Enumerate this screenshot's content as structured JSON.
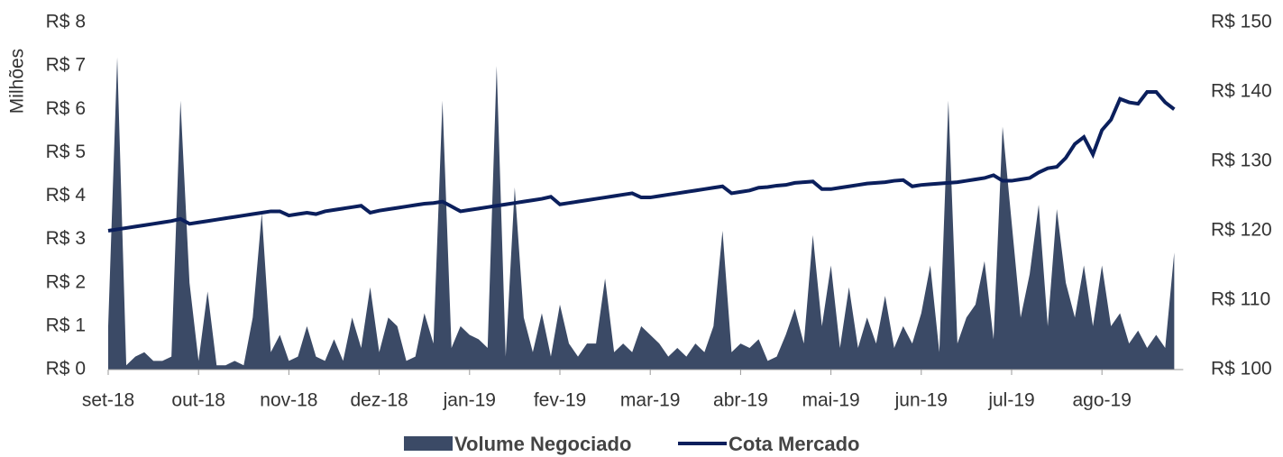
{
  "chart_data": {
    "type": "area",
    "y_label": "Milhões",
    "categories": [
      "set-18",
      null,
      null,
      null,
      null,
      null,
      null,
      null,
      null,
      null,
      "out-18",
      null,
      null,
      null,
      null,
      null,
      null,
      null,
      null,
      null,
      "nov-18",
      null,
      null,
      null,
      null,
      null,
      null,
      null,
      null,
      null,
      "dez-18",
      null,
      null,
      null,
      null,
      null,
      null,
      null,
      null,
      null,
      "jan-19",
      null,
      null,
      null,
      null,
      null,
      null,
      null,
      null,
      null,
      "fev-19",
      null,
      null,
      null,
      null,
      null,
      null,
      null,
      null,
      null,
      "mar-19",
      null,
      null,
      null,
      null,
      null,
      null,
      null,
      null,
      null,
      "abr-19",
      null,
      null,
      null,
      null,
      null,
      null,
      null,
      null,
      null,
      "mai-19",
      null,
      null,
      null,
      null,
      null,
      null,
      null,
      null,
      null,
      "jun-19",
      null,
      null,
      null,
      null,
      null,
      null,
      null,
      null,
      null,
      "jul-19",
      null,
      null,
      null,
      null,
      null,
      null,
      null,
      null,
      null,
      "ago-19",
      null,
      null,
      null,
      null,
      null,
      null,
      null,
      null
    ],
    "series": [
      {
        "name": "Volume Negociado",
        "type": "area",
        "color": "#3b4a66",
        "values": [
          1.0,
          7.2,
          0.1,
          0.3,
          0.4,
          0.2,
          0.2,
          0.3,
          6.2,
          2.0,
          0.2,
          1.8,
          0.1,
          0.1,
          0.2,
          0.1,
          1.2,
          3.6,
          0.4,
          0.8,
          0.2,
          0.3,
          1.0,
          0.3,
          0.2,
          0.7,
          0.2,
          1.2,
          0.5,
          1.9,
          0.4,
          1.2,
          1.0,
          0.2,
          0.3,
          1.3,
          0.6,
          6.2,
          0.5,
          1.0,
          0.8,
          0.7,
          0.5,
          7.0,
          0.3,
          4.2,
          1.2,
          0.4,
          1.3,
          0.3,
          1.5,
          0.6,
          0.3,
          0.6,
          0.6,
          2.1,
          0.4,
          0.6,
          0.4,
          1.0,
          0.8,
          0.6,
          0.3,
          0.5,
          0.3,
          0.6,
          0.4,
          1.0,
          3.2,
          0.4,
          0.6,
          0.5,
          0.7,
          0.2,
          0.3,
          0.8,
          1.4,
          0.6,
          3.1,
          1.0,
          2.4,
          0.5,
          1.9,
          0.5,
          1.2,
          0.6,
          1.7,
          0.5,
          1.0,
          0.6,
          1.3,
          2.4,
          0.4,
          6.2,
          0.6,
          1.2,
          1.5,
          2.5,
          0.7,
          5.6,
          3.4,
          1.2,
          2.2,
          3.8,
          1.0,
          3.7,
          2.0,
          1.2,
          2.4,
          1.0,
          2.4,
          1.0,
          1.3,
          0.6,
          0.9,
          0.5,
          0.8,
          0.5,
          2.7
        ]
      },
      {
        "name": "Cota Mercado",
        "type": "line",
        "axis": "y2",
        "color": "#0b1f5c",
        "values": [
          120,
          120.2,
          120.4,
          120.6,
          120.8,
          121.0,
          121.2,
          121.4,
          121.7,
          121.0,
          121.2,
          121.4,
          121.6,
          121.8,
          122.0,
          122.2,
          122.4,
          122.6,
          122.8,
          122.8,
          122.2,
          122.4,
          122.6,
          122.4,
          122.8,
          123.0,
          123.2,
          123.4,
          123.6,
          122.6,
          122.9,
          123.1,
          123.3,
          123.5,
          123.7,
          123.9,
          124.0,
          124.2,
          123.5,
          122.8,
          123.0,
          123.2,
          123.4,
          123.6,
          123.8,
          124.0,
          124.2,
          124.4,
          124.6,
          124.9,
          123.8,
          124.0,
          124.2,
          124.4,
          124.6,
          124.8,
          125.0,
          125.2,
          125.4,
          124.8,
          124.8,
          125.0,
          125.2,
          125.4,
          125.6,
          125.8,
          126.0,
          126.2,
          126.4,
          125.4,
          125.6,
          125.8,
          126.2,
          126.3,
          126.5,
          126.6,
          126.9,
          127.0,
          127.1,
          126.0,
          126.0,
          126.2,
          126.4,
          126.6,
          126.8,
          126.9,
          127.0,
          127.2,
          127.3,
          126.4,
          126.6,
          126.7,
          126.8,
          126.9,
          127.0,
          127.2,
          127.4,
          127.6,
          128.0,
          127.2,
          127.2,
          127.4,
          127.6,
          128.4,
          129.0,
          129.2,
          130.5,
          132.5,
          133.5,
          131.0,
          134.5,
          136,
          139,
          138.5,
          138.3,
          140,
          140,
          138.5,
          137.5
        ]
      }
    ],
    "ylim": [
      0,
      8
    ],
    "yticks": [
      {
        "value": 0,
        "label": "R$ 0"
      },
      {
        "value": 1,
        "label": "R$ 1"
      },
      {
        "value": 2,
        "label": "R$ 2"
      },
      {
        "value": 3,
        "label": "R$ 3"
      },
      {
        "value": 4,
        "label": "R$ 4"
      },
      {
        "value": 5,
        "label": "R$ 5"
      },
      {
        "value": 6,
        "label": "R$ 6"
      },
      {
        "value": 7,
        "label": "R$ 7"
      },
      {
        "value": 8,
        "label": "R$ 8"
      }
    ],
    "y2lim": [
      100,
      150
    ],
    "y2ticks": [
      {
        "value": 100,
        "label": "R$ 100"
      },
      {
        "value": 110,
        "label": "R$ 110"
      },
      {
        "value": 120,
        "label": "R$ 120"
      },
      {
        "value": 130,
        "label": "R$ 130"
      },
      {
        "value": 140,
        "label": "R$ 140"
      },
      {
        "value": 150,
        "label": "R$ 150"
      }
    ],
    "legend": "bottom"
  }
}
